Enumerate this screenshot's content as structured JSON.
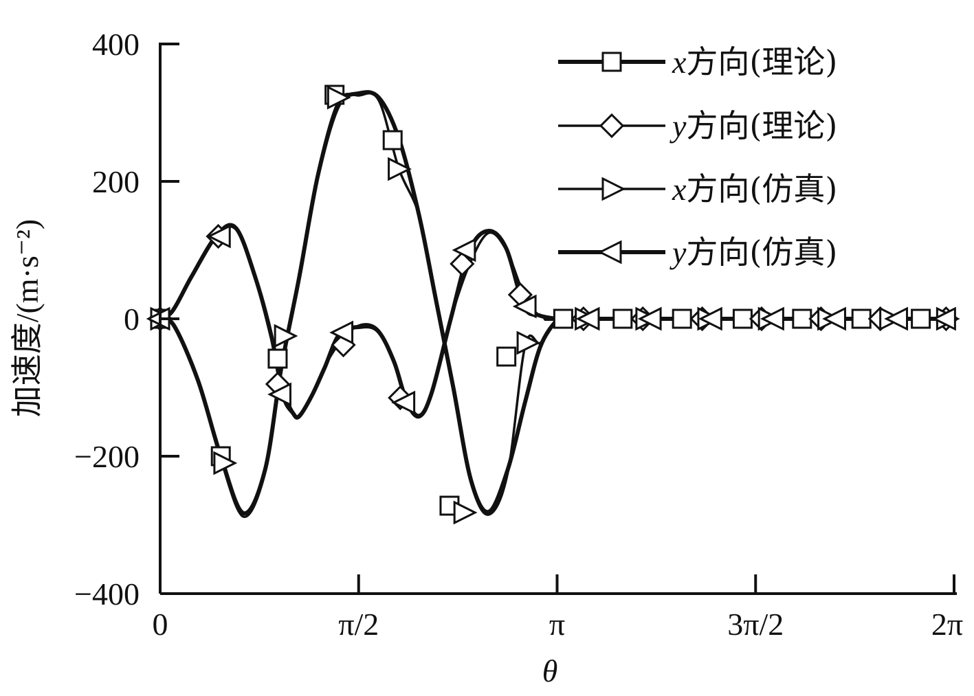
{
  "chart_data": {
    "type": "line",
    "xlabel": "θ",
    "ylabel": "加速度/(m·s⁻²)",
    "xlim": [
      0,
      6.2832
    ],
    "ylim": [
      -400,
      400
    ],
    "grid": false,
    "legend_position": "top-right",
    "x_ticks": [
      {
        "value": 0,
        "label": "0"
      },
      {
        "value": 1.5708,
        "label": "π/2"
      },
      {
        "value": 3.1416,
        "label": "π"
      },
      {
        "value": 4.7124,
        "label": "3π/2"
      },
      {
        "value": 6.2832,
        "label": "2π"
      }
    ],
    "y_ticks": [
      {
        "value": 400,
        "label": "400"
      },
      {
        "value": 200,
        "label": "200"
      },
      {
        "value": 0,
        "label": "0"
      },
      {
        "value": -200,
        "label": "−200"
      },
      {
        "value": -400,
        "label": "−400"
      }
    ],
    "series": [
      {
        "name": "x方向(理论)",
        "marker": "square",
        "line_width": "thick",
        "x": [
          0,
          0.11,
          0.3,
          0.48,
          0.66,
          0.83,
          0.96,
          1.1,
          1.25,
          1.41,
          1.57,
          1.73,
          1.89,
          2.05,
          2.18,
          2.32,
          2.46,
          2.6,
          2.75,
          2.89,
          3.01,
          3.14,
          3.2,
          3.3,
          6.2832
        ],
        "values": [
          0,
          -10,
          -90,
          -200,
          -283,
          -220,
          -70,
          60,
          210,
          310,
          328,
          322,
          262,
          150,
          30,
          -100,
          -235,
          -281,
          -220,
          -120,
          -40,
          -2,
          0,
          0,
          0
        ]
      },
      {
        "name": "y方向(理论)",
        "marker": "diamond",
        "line_width": "thin",
        "x": [
          0,
          0.1,
          0.25,
          0.45,
          0.6,
          0.75,
          0.88,
          0.97,
          1.05,
          1.1,
          1.2,
          1.3,
          1.42,
          1.57,
          1.72,
          1.85,
          1.95,
          2.05,
          2.15,
          2.3,
          2.45,
          2.6,
          2.74,
          2.88,
          3.0,
          3.14,
          3.2,
          3.3,
          6.2832
        ],
        "values": [
          0,
          10,
          60,
          120,
          130,
          60,
          -30,
          -100,
          -135,
          -140,
          -110,
          -70,
          -35,
          -10,
          -15,
          -60,
          -115,
          -140,
          -105,
          0,
          80,
          125,
          100,
          35,
          5,
          0,
          0,
          0,
          0
        ]
      },
      {
        "name": "x方向(仿真)",
        "marker": "triangle-right",
        "line_width": "thin",
        "x": [
          0,
          0.11,
          0.3,
          0.48,
          0.66,
          0.83,
          0.96,
          1.1,
          1.25,
          1.41,
          1.57,
          1.73,
          1.89,
          2.05,
          2.18,
          2.32,
          2.46,
          2.6,
          2.75,
          2.89,
          3.01,
          3.14,
          3.2,
          3.3,
          6.2832
        ],
        "values": [
          0,
          -12,
          -92,
          -205,
          -288,
          -224,
          -72,
          58,
          214,
          316,
          325,
          318,
          218,
          150,
          30,
          -100,
          -238,
          -285,
          -225,
          -38,
          -35,
          -2,
          0,
          0,
          0
        ]
      },
      {
        "name": "y方向(仿真)",
        "marker": "triangle-left",
        "line_width": "thick",
        "x": [
          0,
          0.1,
          0.25,
          0.45,
          0.6,
          0.75,
          0.88,
          0.97,
          1.05,
          1.1,
          1.2,
          1.3,
          1.42,
          1.57,
          1.72,
          1.85,
          1.95,
          2.05,
          2.15,
          2.3,
          2.45,
          2.6,
          2.74,
          2.88,
          3.0,
          3.14,
          3.2,
          3.3,
          6.2832
        ],
        "values": [
          0,
          12,
          62,
          122,
          132,
          62,
          -25,
          -110,
          -137,
          -142,
          -112,
          -72,
          -22,
          -12,
          -17,
          -62,
          -120,
          -142,
          -107,
          0,
          100,
          128,
          102,
          18,
          5,
          0,
          0,
          0,
          0
        ]
      }
    ],
    "markers": {
      "x方向(理论)": {
        "x": [
          0,
          0.48,
          0.93,
          1.38,
          1.84,
          2.29,
          2.74,
          3.19,
          3.66,
          4.13,
          4.61,
          5.08,
          5.55,
          6.02
        ],
        "values": [
          0,
          -200,
          -58,
          326,
          260,
          -272,
          -55,
          0,
          0,
          0,
          0,
          0,
          0,
          0
        ]
      },
      "y方向(理论)": {
        "x": [
          0,
          0.46,
          0.93,
          1.45,
          1.9,
          2.39,
          2.85,
          3.35,
          3.82,
          4.29,
          4.76,
          5.23,
          5.7,
          6.22
        ],
        "values": [
          0,
          120,
          -95,
          -38,
          -115,
          80,
          35,
          0,
          0,
          0,
          0,
          0,
          0,
          0
        ]
      },
      "x方向(仿真)": {
        "x": [
          0,
          0.5,
          0.98,
          1.4,
          1.88,
          2.4,
          2.9,
          3.36,
          3.84,
          4.33,
          4.81,
          5.28,
          5.77,
          6.22
        ],
        "values": [
          0,
          -210,
          -25,
          322,
          218,
          -282,
          -35,
          0,
          0,
          0,
          0,
          0,
          0,
          0
        ]
      },
      "y方向(仿真)": {
        "x": [
          0,
          0.48,
          0.96,
          1.45,
          1.94,
          2.42,
          2.9,
          3.4,
          3.89,
          4.37,
          4.86,
          5.35,
          5.84,
          6.22
        ],
        "values": [
          0,
          120,
          -110,
          -20,
          -122,
          100,
          18,
          0,
          0,
          0,
          0,
          0,
          0,
          0
        ]
      }
    }
  }
}
